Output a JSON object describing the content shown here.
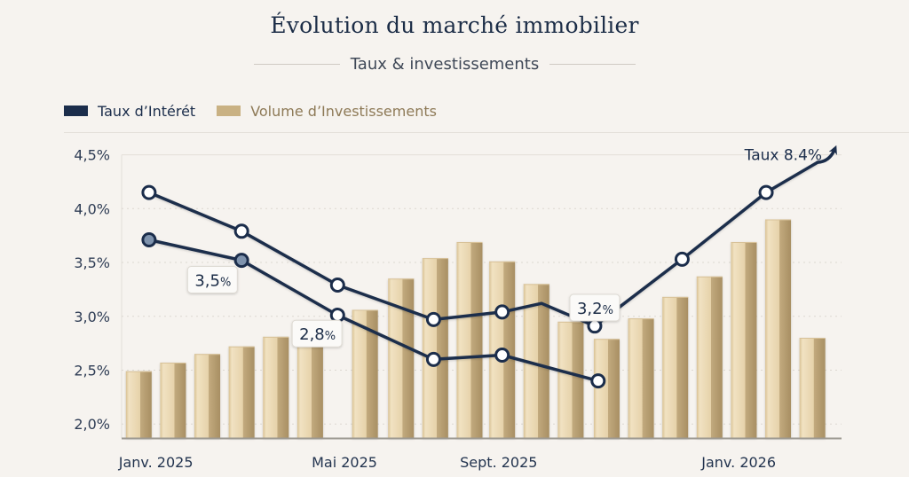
{
  "header": {
    "title": "Évolution du marché immobilier",
    "subtitle": "Taux & investissements"
  },
  "legend": [
    {
      "label": "Taux d’Intérét",
      "color": "#1b2d4b"
    },
    {
      "label": "Volume d’Investissements",
      "color": "#c9b183"
    }
  ],
  "colors": {
    "line": "#1b2d4b",
    "bar_light": "#ead8b4",
    "bar_dark": "#b59d72",
    "grid": "#dcd8d1",
    "marker_fill_open": "#ffffff",
    "marker_fill_solid": "#7f93ad"
  },
  "chart_data": {
    "type": "bar+line",
    "title": "Évolution du marché immobilier",
    "subtitle": "Taux & investissements",
    "ylim": [
      1.87,
      4.62
    ],
    "yticks": [
      {
        "value": 4.5,
        "label": "4,5%"
      },
      {
        "value": 4.0,
        "label": "4,0%"
      },
      {
        "value": 3.5,
        "label": "3,5%"
      },
      {
        "value": 3.0,
        "label": "3,0%"
      },
      {
        "value": 2.5,
        "label": "2,5%"
      },
      {
        "value": 2.0,
        "label": "2,0%"
      }
    ],
    "xlim": [
      0,
      21
    ],
    "xticks": [
      {
        "x": 1,
        "label": "Janv. 2025"
      },
      {
        "x": 6.5,
        "label": "Mai 2025"
      },
      {
        "x": 11,
        "label": "Sept. 2025"
      },
      {
        "x": 18,
        "label": "Janv. 2026"
      }
    ],
    "grid": true,
    "legend_position": "top-left",
    "bars": {
      "name": "Volume d’Investissements",
      "x": [
        0.5,
        1.5,
        2.5,
        3.5,
        4.5,
        5.5,
        7.1,
        8.15,
        9.15,
        10.15,
        11.1,
        12.1,
        13.1,
        14.15,
        15.15,
        16.15,
        17.15,
        18.15,
        19.15,
        20.15
      ],
      "values": [
        2.49,
        2.57,
        2.65,
        2.72,
        2.81,
        2.77,
        3.06,
        3.35,
        3.54,
        3.69,
        3.51,
        3.3,
        2.95,
        2.79,
        2.98,
        3.18,
        3.37,
        3.69,
        3.9,
        2.8
      ]
    },
    "series": [
      {
        "name": "Taux d’Intérét (haut)",
        "points": [
          {
            "x": 0.8,
            "y": 4.15,
            "marker": "open"
          },
          {
            "x": 3.5,
            "y": 3.79,
            "marker": "open"
          },
          {
            "x": 6.3,
            "y": 3.29,
            "marker": "open"
          },
          {
            "x": 9.1,
            "y": 2.97,
            "marker": "open"
          },
          {
            "x": 11.1,
            "y": 3.04,
            "marker": "open"
          },
          {
            "x": 12.25,
            "y": 3.12,
            "marker": "none"
          },
          {
            "x": 13.8,
            "y": 2.91,
            "marker": "open"
          },
          {
            "x": 16.35,
            "y": 3.53,
            "marker": "open"
          },
          {
            "x": 18.8,
            "y": 4.15,
            "marker": "open"
          },
          {
            "x": 20.3,
            "y": 4.43,
            "marker": "none"
          }
        ],
        "arrow_end": {
          "x": 20.8,
          "y": 4.55
        }
      },
      {
        "name": "Taux d’Intérét (bas)",
        "points": [
          {
            "x": 0.8,
            "y": 3.71,
            "marker": "solid"
          },
          {
            "x": 3.5,
            "y": 3.52,
            "marker": "solid"
          },
          {
            "x": 6.3,
            "y": 3.01,
            "marker": "open"
          },
          {
            "x": 9.1,
            "y": 2.6,
            "marker": "open"
          },
          {
            "x": 11.1,
            "y": 2.64,
            "marker": "open"
          },
          {
            "x": 13.9,
            "y": 2.4,
            "marker": "open"
          }
        ]
      }
    ],
    "annotations": [
      {
        "value": "3,5",
        "unit": "%",
        "x": 2.65,
        "y": 3.34
      },
      {
        "value": "2,8",
        "unit": "%",
        "x": 5.7,
        "y": 2.84
      },
      {
        "value": "3,2",
        "unit": "%",
        "x": 13.8,
        "y": 3.08
      },
      {
        "text": "Taux 8.4%",
        "x": 19.3,
        "y": 4.5
      }
    ]
  }
}
